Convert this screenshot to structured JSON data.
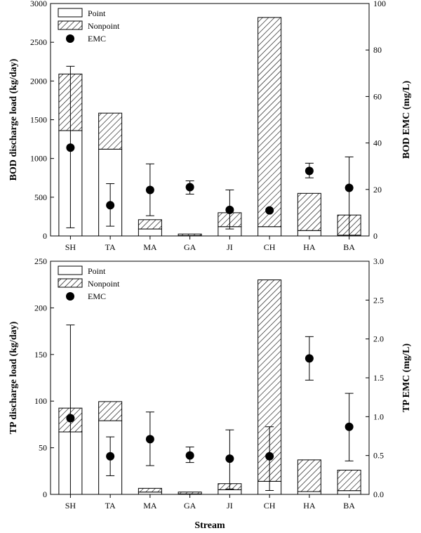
{
  "chart_data": [
    {
      "type": "bar",
      "categories": [
        "SH",
        "TA",
        "MA",
        "GA",
        "JI",
        "CH",
        "HA",
        "BA"
      ],
      "series": [
        {
          "name": "Point",
          "values": [
            1360,
            1120,
            90,
            5,
            120,
            120,
            70,
            10
          ]
        },
        {
          "name": "Nonpoint",
          "values": [
            730,
            465,
            120,
            20,
            180,
            2700,
            480,
            260
          ]
        }
      ],
      "emc": {
        "name": "EMC",
        "values": [
          38,
          13.2,
          19.8,
          21,
          11.2,
          11,
          28,
          20.7
        ],
        "err_low": [
          3.5,
          4.2,
          8.7,
          18,
          3,
          11,
          25,
          0
        ],
        "err_high": [
          73,
          22.5,
          31,
          23.7,
          19.8,
          11,
          31.3,
          34
        ]
      },
      "ylabel": "BOD discharge load (kg/day)",
      "ylabel2": "BOD EMC (mg/L)",
      "ylim": [
        0,
        3000
      ],
      "ylim2": [
        0,
        100
      ],
      "yticks": [
        "0",
        "500",
        "1000",
        "1500",
        "2000",
        "2500",
        "3000"
      ],
      "yticks2": [
        "0",
        "20",
        "40",
        "60",
        "80",
        "100"
      ],
      "legend": [
        "Point",
        "Nonpoint",
        "EMC"
      ],
      "legend_position": "top-left",
      "grid": false
    },
    {
      "type": "bar",
      "categories": [
        "SH",
        "TA",
        "MA",
        "GA",
        "JI",
        "CH",
        "HA",
        "BA"
      ],
      "series": [
        {
          "name": "Point",
          "values": [
            67,
            79,
            2.5,
            0.5,
            5,
            14,
            3,
            4
          ]
        },
        {
          "name": "Nonpoint",
          "values": [
            25.5,
            20.5,
            4,
            2,
            6.5,
            216,
            34,
            22
          ]
        }
      ],
      "emc": {
        "name": "EMC",
        "values": [
          0.98,
          0.49,
          0.71,
          0.5,
          0.46,
          0.49,
          1.75,
          0.87
        ],
        "err_low": [
          0,
          0.24,
          0.37,
          0.41,
          0.07,
          0.05,
          1.47,
          0.43
        ],
        "err_high": [
          2.18,
          0.74,
          1.06,
          0.61,
          0.83,
          0.87,
          2.03,
          1.3
        ]
      },
      "ylabel": "TP discharge load (kg/day)",
      "ylabel2": "TP EMC (mg/L)",
      "xlabel": "Stream",
      "ylim": [
        0,
        250
      ],
      "ylim2": [
        0,
        3
      ],
      "yticks": [
        "0",
        "50",
        "100",
        "150",
        "200",
        "250"
      ],
      "yticks2": [
        "0.0",
        "0.5",
        "1.0",
        "1.5",
        "2.0",
        "2.5",
        "3.0"
      ],
      "legend": [
        "Point",
        "Nonpoint",
        "EMC"
      ],
      "legend_position": "top-left",
      "grid": false
    }
  ]
}
